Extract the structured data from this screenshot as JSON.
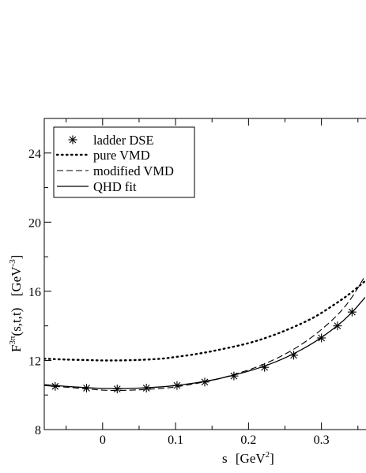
{
  "chart_data": {
    "type": "line",
    "xlabel_main": "s",
    "xlabel_unit": "[GeV",
    "xlabel_exp": "2",
    "xlabel_close": "]",
    "ylabel_main": "F",
    "ylabel_sup": "3π",
    "ylabel_args": "(s,t,t)",
    "ylabel_unit": "[GeV",
    "ylabel_exp": "-3",
    "ylabel_close": "]",
    "xlim": [
      -0.08,
      0.36
    ],
    "ylim": [
      8,
      26
    ],
    "x_ticks": [
      0,
      0.1,
      0.2,
      0.3
    ],
    "x_tick_labels": [
      "0",
      "0.1",
      "0.2",
      "0.3"
    ],
    "y_ticks": [
      8,
      12,
      16,
      20,
      24
    ],
    "y_tick_labels": [
      "8",
      "12",
      "16",
      "20",
      "24"
    ],
    "legend_position": "top-left",
    "series": [
      {
        "name": "ladder DSE",
        "style": "markers",
        "x": [
          -0.065,
          -0.022,
          0.02,
          0.06,
          0.102,
          0.14,
          0.18,
          0.222,
          0.262,
          0.3,
          0.322,
          0.342
        ],
        "y": [
          10.5,
          10.4,
          10.35,
          10.4,
          10.55,
          10.75,
          11.1,
          11.6,
          12.3,
          13.3,
          14.0,
          14.8
        ]
      },
      {
        "name": "pure VMD",
        "style": "dotted",
        "x": [
          -0.08,
          -0.05,
          -0.02,
          0.0,
          0.02,
          0.05,
          0.08,
          0.1,
          0.13,
          0.16,
          0.2,
          0.23,
          0.26,
          0.29,
          0.32,
          0.34,
          0.36
        ],
        "y": [
          12.1,
          12.05,
          12.02,
          12.0,
          12.0,
          12.03,
          12.1,
          12.2,
          12.38,
          12.62,
          13.0,
          13.4,
          13.9,
          14.5,
          15.3,
          15.9,
          16.6
        ]
      },
      {
        "name": "modified VMD",
        "style": "dashed",
        "x": [
          -0.08,
          -0.05,
          -0.02,
          0.0,
          0.02,
          0.05,
          0.08,
          0.1,
          0.13,
          0.16,
          0.2,
          0.23,
          0.26,
          0.29,
          0.32,
          0.34,
          0.36
        ],
        "y": [
          10.55,
          10.45,
          10.35,
          10.28,
          10.26,
          10.3,
          10.38,
          10.47,
          10.68,
          10.95,
          11.45,
          11.95,
          12.6,
          13.45,
          14.55,
          15.55,
          16.9
        ]
      },
      {
        "name": "QHD fit",
        "style": "solid",
        "x": [
          -0.08,
          -0.05,
          -0.02,
          0.0,
          0.02,
          0.05,
          0.08,
          0.1,
          0.13,
          0.16,
          0.2,
          0.23,
          0.26,
          0.29,
          0.32,
          0.34,
          0.36
        ],
        "y": [
          10.6,
          10.5,
          10.42,
          10.38,
          10.37,
          10.4,
          10.47,
          10.55,
          10.72,
          10.95,
          11.38,
          11.8,
          12.35,
          13.05,
          13.95,
          14.7,
          15.65
        ]
      }
    ]
  }
}
